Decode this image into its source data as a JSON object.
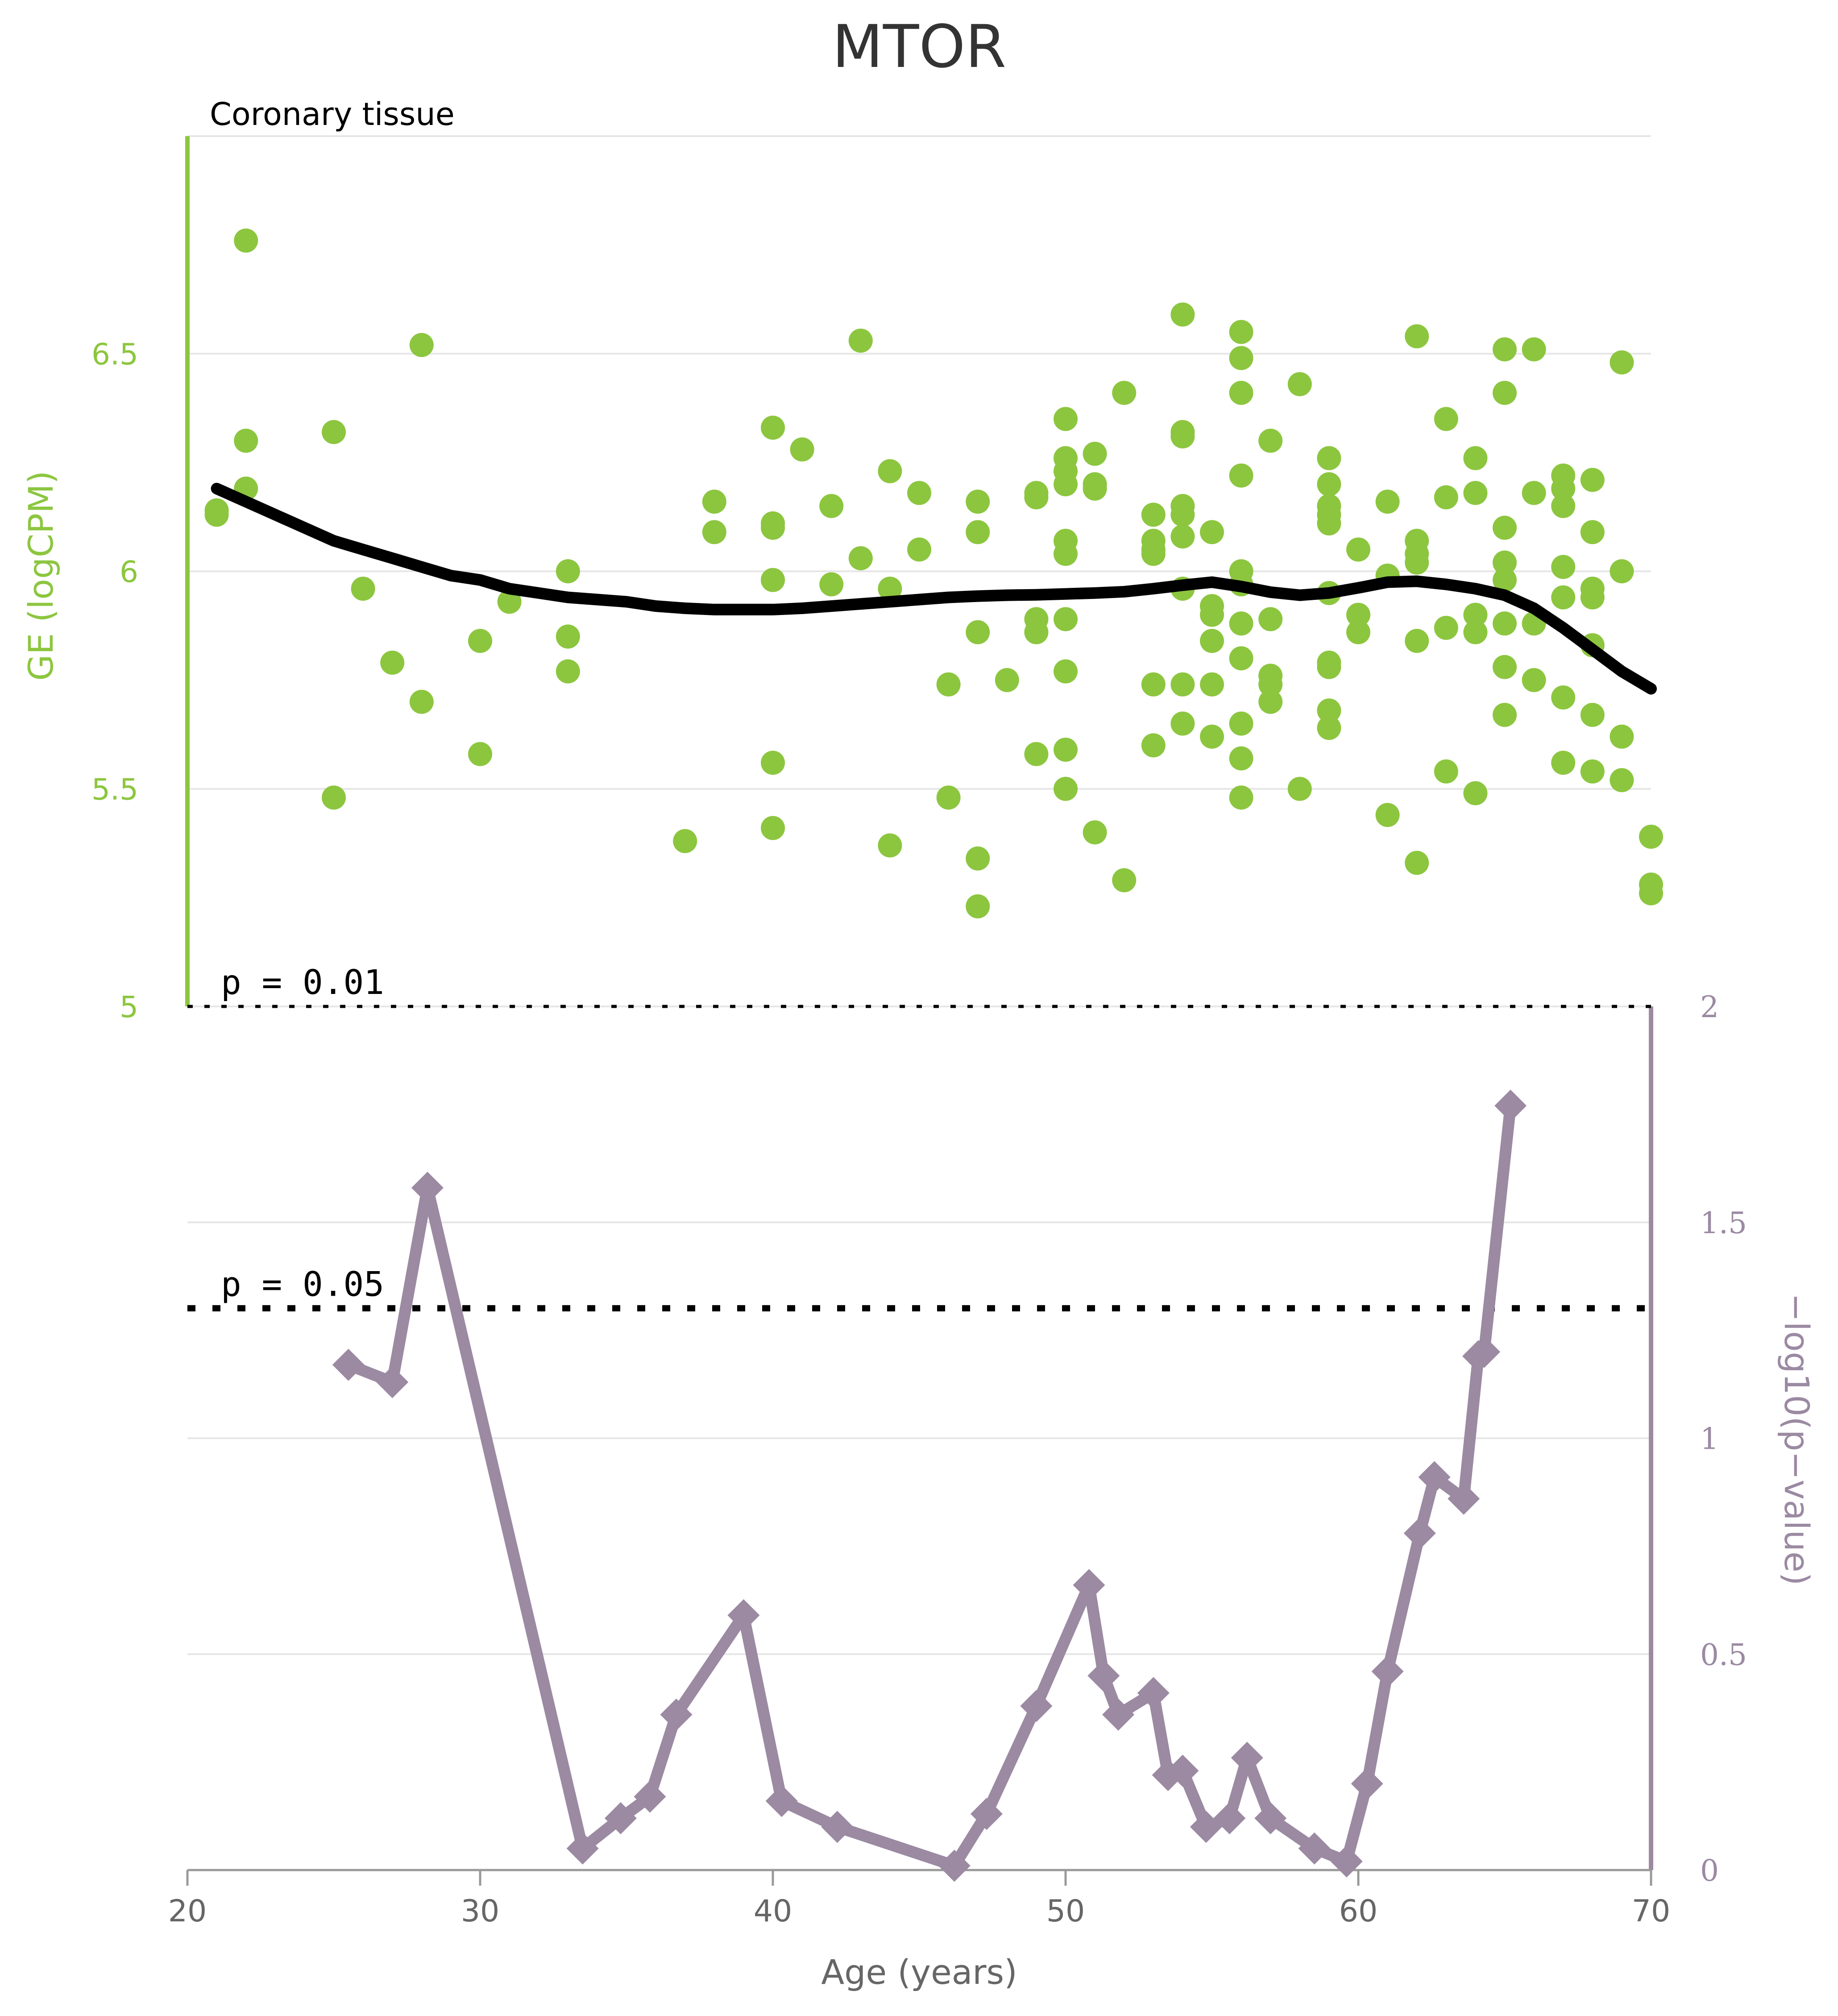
{
  "chart_data": {
    "type": "scatter+line",
    "title": "MTOR",
    "subtitle": "Coronary tissue",
    "xlabel": "Age (years)",
    "ylabel_left": "GE (logCPM)",
    "ylabel_right": "−log10(p−value)",
    "xlim": [
      20,
      70
    ],
    "ylim_left": [
      5,
      7
    ],
    "ylim_right": [
      0,
      2
    ],
    "x_ticks": [
      "20",
      "30",
      "40",
      "50",
      "60",
      "70"
    ],
    "left_ticks": [
      "5",
      "5.5",
      "6",
      "6.5"
    ],
    "right_ticks": [
      "0",
      "0.5",
      "1",
      "1.5",
      "2"
    ],
    "grid": true,
    "colors": {
      "scatter": "#8cc63f",
      "trend": "#000000",
      "pvalue": "#9b8aa2",
      "grid": "#e6e6e6"
    },
    "thresholds": [
      {
        "label": "p = 0.01",
        "value": 2.0
      },
      {
        "label": "p = 0.05",
        "value": 1.301
      }
    ],
    "scatter": [
      [
        21.0,
        6.14
      ],
      [
        21.0,
        6.13
      ],
      [
        22.0,
        6.76
      ],
      [
        22.0,
        6.3
      ],
      [
        22.0,
        6.19
      ],
      [
        25.0,
        6.32
      ],
      [
        25.0,
        5.48
      ],
      [
        26.0,
        5.96
      ],
      [
        27.0,
        5.79
      ],
      [
        28.0,
        6.52
      ],
      [
        28.0,
        5.7
      ],
      [
        30.0,
        5.84
      ],
      [
        30.0,
        5.58
      ],
      [
        31.0,
        5.93
      ],
      [
        33.0,
        6.0
      ],
      [
        33.0,
        5.85
      ],
      [
        33.0,
        5.77
      ],
      [
        37.0,
        5.38
      ],
      [
        38.0,
        6.16
      ],
      [
        38.0,
        6.09
      ],
      [
        40.0,
        6.33
      ],
      [
        40.0,
        6.11
      ],
      [
        40.0,
        6.1
      ],
      [
        40.0,
        5.98
      ],
      [
        40.0,
        5.56
      ],
      [
        40.0,
        5.41
      ],
      [
        41.0,
        6.28
      ],
      [
        42.0,
        6.15
      ],
      [
        42.0,
        5.97
      ],
      [
        43.0,
        6.53
      ],
      [
        43.0,
        6.03
      ],
      [
        44.0,
        6.23
      ],
      [
        44.0,
        5.96
      ],
      [
        44.0,
        5.37
      ],
      [
        45.0,
        6.18
      ],
      [
        45.0,
        6.05
      ],
      [
        46.0,
        5.74
      ],
      [
        46.0,
        5.48
      ],
      [
        47.0,
        6.16
      ],
      [
        47.0,
        6.09
      ],
      [
        47.0,
        5.86
      ],
      [
        47.0,
        5.34
      ],
      [
        47.0,
        5.23
      ],
      [
        48.0,
        5.75
      ],
      [
        49.0,
        6.18
      ],
      [
        49.0,
        6.17
      ],
      [
        49.0,
        5.89
      ],
      [
        49.0,
        5.86
      ],
      [
        49.0,
        5.58
      ],
      [
        50.0,
        6.35
      ],
      [
        50.0,
        6.26
      ],
      [
        50.0,
        6.23
      ],
      [
        50.0,
        6.2
      ],
      [
        50.0,
        6.07
      ],
      [
        50.0,
        6.04
      ],
      [
        50.0,
        5.89
      ],
      [
        50.0,
        5.77
      ],
      [
        50.0,
        5.59
      ],
      [
        50.0,
        5.5
      ],
      [
        51.0,
        6.27
      ],
      [
        51.0,
        6.2
      ],
      [
        51.0,
        6.19
      ],
      [
        51.0,
        5.4
      ],
      [
        52.0,
        6.41
      ],
      [
        52.0,
        5.29
      ],
      [
        53.0,
        6.13
      ],
      [
        53.0,
        6.07
      ],
      [
        53.0,
        6.05
      ],
      [
        53.0,
        6.04
      ],
      [
        53.0,
        5.74
      ],
      [
        53.0,
        5.6
      ],
      [
        54.0,
        6.59
      ],
      [
        54.0,
        6.32
      ],
      [
        54.0,
        6.31
      ],
      [
        54.0,
        6.15
      ],
      [
        54.0,
        6.13
      ],
      [
        54.0,
        6.08
      ],
      [
        54.0,
        5.96
      ],
      [
        54.0,
        5.74
      ],
      [
        54.0,
        5.65
      ],
      [
        55.0,
        6.09
      ],
      [
        55.0,
        5.92
      ],
      [
        55.0,
        5.9
      ],
      [
        55.0,
        5.84
      ],
      [
        55.0,
        5.74
      ],
      [
        55.0,
        5.62
      ],
      [
        56.0,
        6.55
      ],
      [
        56.0,
        6.49
      ],
      [
        56.0,
        6.41
      ],
      [
        56.0,
        6.22
      ],
      [
        56.0,
        6.0
      ],
      [
        56.0,
        5.97
      ],
      [
        56.0,
        5.88
      ],
      [
        56.0,
        5.8
      ],
      [
        56.0,
        5.65
      ],
      [
        56.0,
        5.57
      ],
      [
        56.0,
        5.48
      ],
      [
        57.0,
        6.3
      ],
      [
        57.0,
        5.89
      ],
      [
        57.0,
        5.76
      ],
      [
        57.0,
        5.74
      ],
      [
        57.0,
        5.7
      ],
      [
        58.0,
        6.43
      ],
      [
        58.0,
        5.5
      ],
      [
        59.0,
        6.26
      ],
      [
        59.0,
        6.2
      ],
      [
        59.0,
        6.15
      ],
      [
        59.0,
        6.13
      ],
      [
        59.0,
        6.11
      ],
      [
        59.0,
        5.95
      ],
      [
        59.0,
        5.79
      ],
      [
        59.0,
        5.78
      ],
      [
        59.0,
        5.68
      ],
      [
        59.0,
        5.64
      ],
      [
        60.0,
        6.05
      ],
      [
        60.0,
        5.9
      ],
      [
        60.0,
        5.86
      ],
      [
        61.0,
        6.16
      ],
      [
        61.0,
        5.99
      ],
      [
        61.0,
        5.44
      ],
      [
        62.0,
        6.54
      ],
      [
        62.0,
        6.07
      ],
      [
        62.0,
        6.04
      ],
      [
        62.0,
        6.02
      ],
      [
        62.0,
        5.84
      ],
      [
        62.0,
        5.33
      ],
      [
        63.0,
        6.35
      ],
      [
        63.0,
        6.17
      ],
      [
        63.0,
        5.87
      ],
      [
        63.0,
        5.54
      ],
      [
        64.0,
        6.26
      ],
      [
        64.0,
        6.18
      ],
      [
        64.0,
        5.9
      ],
      [
        64.0,
        5.86
      ],
      [
        64.0,
        5.49
      ],
      [
        65.0,
        6.51
      ],
      [
        65.0,
        6.41
      ],
      [
        65.0,
        6.1
      ],
      [
        65.0,
        6.02
      ],
      [
        65.0,
        5.98
      ],
      [
        65.0,
        5.88
      ],
      [
        65.0,
        5.78
      ],
      [
        65.0,
        5.67
      ],
      [
        66.0,
        6.51
      ],
      [
        66.0,
        6.18
      ],
      [
        66.0,
        5.88
      ],
      [
        66.0,
        5.75
      ],
      [
        67.0,
        6.22
      ],
      [
        67.0,
        6.19
      ],
      [
        67.0,
        6.15
      ],
      [
        67.0,
        6.01
      ],
      [
        67.0,
        5.94
      ],
      [
        67.0,
        5.71
      ],
      [
        67.0,
        5.56
      ],
      [
        68.0,
        6.21
      ],
      [
        68.0,
        6.09
      ],
      [
        68.0,
        5.96
      ],
      [
        68.0,
        5.94
      ],
      [
        68.0,
        5.83
      ],
      [
        68.0,
        5.67
      ],
      [
        68.0,
        5.54
      ],
      [
        69.0,
        6.48
      ],
      [
        69.0,
        6.0
      ],
      [
        69.0,
        5.62
      ],
      [
        69.0,
        5.52
      ],
      [
        70.0,
        5.39
      ],
      [
        70.0,
        5.28
      ],
      [
        70.0,
        5.26
      ]
    ],
    "trend": [
      [
        21,
        6.19
      ],
      [
        22,
        6.16
      ],
      [
        23,
        6.13
      ],
      [
        24,
        6.1
      ],
      [
        25,
        6.07
      ],
      [
        26,
        6.05
      ],
      [
        27,
        6.03
      ],
      [
        28,
        6.01
      ],
      [
        29,
        5.99
      ],
      [
        30,
        5.98
      ],
      [
        31,
        5.96
      ],
      [
        32,
        5.95
      ],
      [
        33,
        5.94
      ],
      [
        34,
        5.935
      ],
      [
        35,
        5.93
      ],
      [
        36,
        5.92
      ],
      [
        37,
        5.915
      ],
      [
        38,
        5.912
      ],
      [
        39,
        5.912
      ],
      [
        40,
        5.912
      ],
      [
        41,
        5.915
      ],
      [
        42,
        5.92
      ],
      [
        43,
        5.925
      ],
      [
        44,
        5.93
      ],
      [
        45,
        5.935
      ],
      [
        46,
        5.94
      ],
      [
        47,
        5.943
      ],
      [
        48,
        5.945
      ],
      [
        49,
        5.946
      ],
      [
        50,
        5.948
      ],
      [
        51,
        5.95
      ],
      [
        52,
        5.953
      ],
      [
        53,
        5.96
      ],
      [
        54,
        5.968
      ],
      [
        55,
        5.975
      ],
      [
        56,
        5.965
      ],
      [
        57,
        5.952
      ],
      [
        58,
        5.945
      ],
      [
        59,
        5.95
      ],
      [
        60,
        5.962
      ],
      [
        61,
        5.975
      ],
      [
        62,
        5.977
      ],
      [
        63,
        5.97
      ],
      [
        64,
        5.96
      ],
      [
        65,
        5.945
      ],
      [
        66,
        5.915
      ],
      [
        67,
        5.87
      ],
      [
        68,
        5.82
      ],
      [
        69,
        5.77
      ],
      [
        70,
        5.73
      ]
    ],
    "pvalue": [
      [
        25.5,
        1.17
      ],
      [
        27.0,
        1.13
      ],
      [
        28.2,
        1.58
      ],
      [
        33.5,
        0.05
      ],
      [
        34.8,
        0.12
      ],
      [
        35.8,
        0.17
      ],
      [
        36.7,
        0.36
      ],
      [
        39.0,
        0.59
      ],
      [
        40.3,
        0.16
      ],
      [
        42.2,
        0.1
      ],
      [
        46.2,
        0.01
      ],
      [
        47.3,
        0.13
      ],
      [
        49.0,
        0.38
      ],
      [
        50.8,
        0.66
      ],
      [
        51.3,
        0.45
      ],
      [
        51.8,
        0.36
      ],
      [
        53.0,
        0.41
      ],
      [
        53.5,
        0.22
      ],
      [
        54.0,
        0.23
      ],
      [
        54.8,
        0.1
      ],
      [
        55.6,
        0.12
      ],
      [
        56.2,
        0.26
      ],
      [
        57.0,
        0.12
      ],
      [
        58.5,
        0.05
      ],
      [
        59.6,
        0.02
      ],
      [
        60.3,
        0.2
      ],
      [
        61.0,
        0.46
      ],
      [
        62.1,
        0.78
      ],
      [
        62.6,
        0.91
      ],
      [
        63.6,
        0.86
      ],
      [
        64.1,
        1.19
      ],
      [
        64.3,
        1.2
      ],
      [
        65.2,
        1.77
      ]
    ]
  }
}
